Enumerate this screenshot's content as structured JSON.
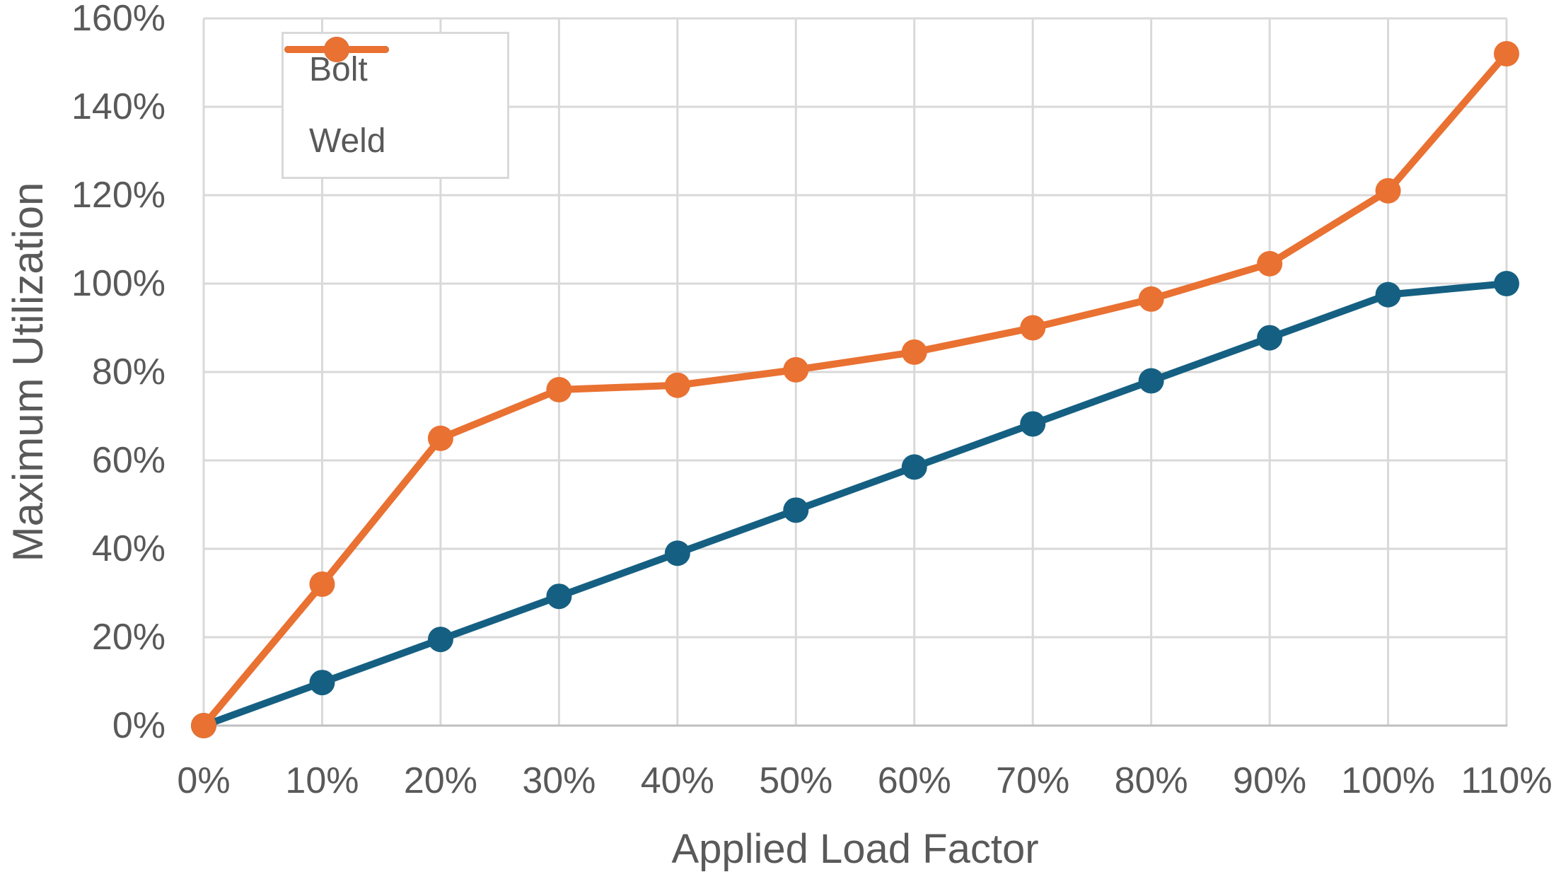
{
  "chart_data": {
    "type": "line",
    "title": "",
    "xlabel": "Applied Load Factor",
    "ylabel": "Maximum Utilization",
    "x": [
      0,
      10,
      20,
      30,
      40,
      50,
      60,
      70,
      80,
      90,
      100,
      110
    ],
    "x_tick_labels": [
      "0%",
      "10%",
      "20%",
      "30%",
      "40%",
      "50%",
      "60%",
      "70%",
      "80%",
      "90%",
      "100%",
      "110%"
    ],
    "y_tick_labels": [
      "0%",
      "20%",
      "40%",
      "60%",
      "80%",
      "100%",
      "120%",
      "140%",
      "160%"
    ],
    "xlim": [
      0,
      110
    ],
    "ylim": [
      0,
      160
    ],
    "y_tick_step": 20,
    "grid": true,
    "legend_position": "top-left-inside",
    "series": [
      {
        "name": "Bolt",
        "color": "#156082",
        "values": [
          0,
          9.75,
          19.5,
          29.25,
          39,
          48.75,
          58.5,
          68.25,
          78,
          87.75,
          97.5,
          100
        ]
      },
      {
        "name": "Weld",
        "color": "#E97132",
        "values": [
          0,
          32,
          65,
          76,
          77,
          80.5,
          84.5,
          90,
          96.5,
          104.5,
          121,
          152
        ]
      }
    ]
  },
  "style": {
    "background": "#FFFFFF",
    "text_color": "#595959",
    "gridline_color": "#D9D9D9",
    "axis_line_color": "#BFBFBF",
    "legend_border_color": "#D9D9D9"
  }
}
